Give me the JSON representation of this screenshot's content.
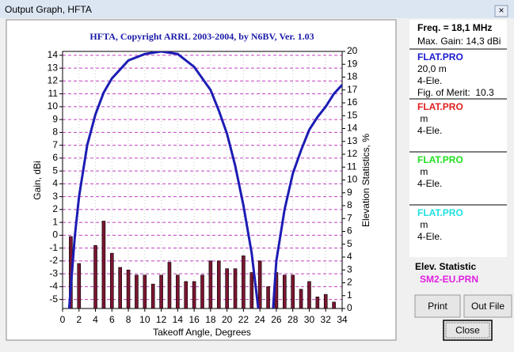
{
  "window": {
    "title": "Output Graph, HFTA",
    "close": "×"
  },
  "chart_data": {
    "type": "combo",
    "title": "HFTA, Copyright ARRL 2003-2004, by N6BV, Ver. 1.03",
    "x_label": "Takeoff Angle, Degrees",
    "y_label": "Gain, dBi",
    "y2_label": "Elevation Statistics, %",
    "xlim": [
      0,
      34
    ],
    "xticks": [
      0,
      2,
      4,
      6,
      8,
      10,
      12,
      14,
      16,
      18,
      20,
      22,
      24,
      26,
      28,
      30,
      32,
      34
    ],
    "ylim": [
      -5.7,
      14.3
    ],
    "yticks": [
      -5,
      -4,
      -3,
      -2,
      -1,
      0,
      1,
      2,
      3,
      4,
      5,
      6,
      7,
      8,
      9,
      10,
      11,
      12,
      13,
      14
    ],
    "y2lim": [
      0,
      20
    ],
    "y2ticks": [
      0,
      1,
      2,
      3,
      4,
      5,
      6,
      7,
      8,
      9,
      10,
      11,
      12,
      13,
      14,
      15,
      16,
      17,
      18,
      19,
      20
    ],
    "grid": true,
    "series": [
      {
        "type": "line",
        "color": "#1c1cb4",
        "x": [
          0.8,
          1.5,
          2,
          3,
          4,
          5,
          6,
          7,
          8,
          10,
          12,
          14,
          16,
          18,
          19,
          20,
          21,
          22,
          23,
          23.8,
          24.7,
          25.6,
          26,
          27,
          28,
          29,
          30,
          31,
          32,
          33,
          34
        ],
        "values": [
          -5.7,
          0,
          3,
          7,
          9.4,
          11.1,
          12.2,
          12.9,
          13.6,
          14.1,
          14.3,
          14.1,
          13.1,
          11.3,
          9.7,
          7.9,
          5.4,
          2.3,
          -1.4,
          -5.7,
          null,
          -5.7,
          -2,
          2,
          4.8,
          6.6,
          8.2,
          9.2,
          10,
          11,
          11.7
        ]
      },
      {
        "type": "bar",
        "axis": "y2",
        "color": "#7a1530",
        "x": [
          1,
          2,
          3,
          4,
          5,
          6,
          7,
          8,
          9,
          10,
          11,
          12,
          13,
          14,
          15,
          16,
          17,
          18,
          19,
          20,
          21,
          22,
          23,
          24,
          25,
          26,
          27,
          28,
          29,
          30,
          31,
          32,
          33
        ],
        "values": [
          5.6,
          3.5,
          0,
          4.9,
          6.8,
          4.3,
          3.2,
          3.0,
          2.6,
          2.6,
          1.9,
          2.6,
          3.6,
          2.6,
          2.1,
          2.1,
          2.6,
          3.7,
          3.7,
          3.1,
          3.1,
          4.1,
          2.8,
          3.7,
          1.7,
          2.8,
          2.6,
          2.6,
          1.5,
          2.1,
          0.9,
          1.1,
          0.5
        ]
      }
    ]
  },
  "panel": {
    "freq": "Freq. = 18,1 MHz",
    "max_gain": "Max. Gain: 14,3 dBi",
    "files": [
      {
        "name": "FLAT.PRO",
        "color": "#1a1ad0",
        "lines": [
          "20,0 m",
          "4-Ele.",
          "Fig. of Merit:  10.3"
        ]
      },
      {
        "name": "FLAT.PRO",
        "color": "#e02020",
        "lines": [
          " m",
          "4-Ele."
        ]
      },
      {
        "name": "FLAT.PRO",
        "color": "#20e020",
        "lines": [
          " m",
          "4-Ele."
        ]
      },
      {
        "name": "FLAT.PRO",
        "color": "#20e0e0",
        "lines": [
          " m",
          "4-Ele."
        ]
      }
    ],
    "elev_title": "Elev. Statistic",
    "elev_file": "SM2-EU.PRN",
    "elev_color": "#e020e0"
  },
  "buttons": [
    "Print",
    "Out File",
    "Close"
  ]
}
